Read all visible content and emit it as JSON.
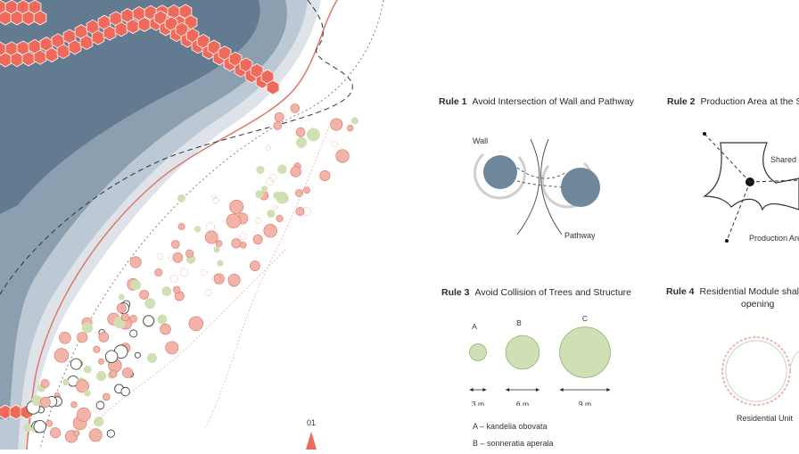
{
  "colors": {
    "water_dark": "#637b90",
    "water_mid": "#8c9fb0",
    "water_light": "#bcc8d3",
    "water_pale": "#dde3e9",
    "hex": "#ef6a5a",
    "coast": "#e07060",
    "pond": "#6f879b",
    "tree_green": "#cfe0b4",
    "tree_green_stroke": "#8fb36f",
    "tree_red": "#f2b3a8"
  },
  "map": {
    "compass_label": "01"
  },
  "rules": [
    {
      "num": "Rule 1",
      "title": "Avoid Intersection of Wall and Pathway"
    },
    {
      "num": "Rule 2",
      "title": "Production Area at the Sh"
    },
    {
      "num": "Rule 3",
      "title": "Avoid Collision of Trees and Structure"
    },
    {
      "num": "Rule 4",
      "title": "Residential Module shall h",
      "title_line2": "opening"
    }
  ],
  "rule1": {
    "wall_label": "Wall",
    "pathway_label": "Pathway"
  },
  "rule2": {
    "shared_label": "Shared N",
    "production_label": "Production Area"
  },
  "rule3": {
    "trees": [
      {
        "letter": "A",
        "size": "3 m",
        "radius_m": 1.5
      },
      {
        "letter": "B",
        "size": "6 m",
        "radius_m": 3
      },
      {
        "letter": "C",
        "size": "9 m",
        "radius_m": 4.5
      }
    ],
    "legend": [
      "A – kandelia obovata",
      "B – sonneratia aperala"
    ]
  },
  "rule4": {
    "unit_label": "Residential Unit"
  }
}
